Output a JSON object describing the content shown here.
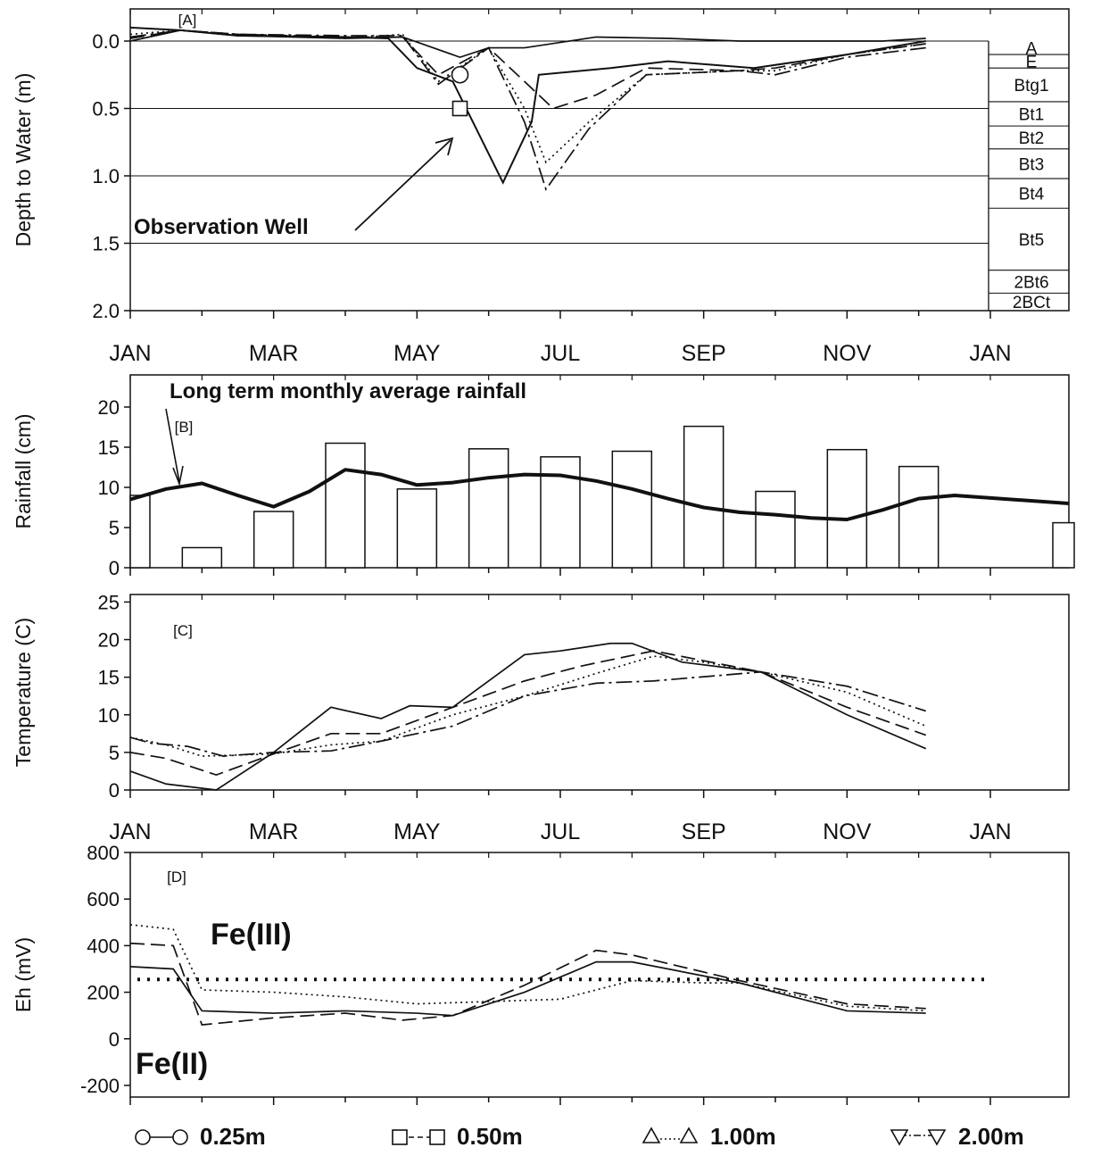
{
  "months": [
    "JAN",
    "MAR",
    "MAY",
    "JUL",
    "SEP",
    "NOV",
    "JAN"
  ],
  "chart_data": [
    {
      "id": "A",
      "type": "line",
      "panel_label": "[A]",
      "ylabel": "Depth to Water (m)",
      "ylim": [
        2.0,
        0.0
      ],
      "y_inverted": true,
      "yticks": [
        "0.0",
        "0.5",
        "1.0",
        "1.5",
        "2.0"
      ],
      "ytick_values": [
        0.0,
        0.5,
        1.0,
        1.5,
        2.0
      ],
      "xlim": [
        0,
        12
      ],
      "grid": "horizontal",
      "annotation": "Observation Well",
      "series": [
        {
          "name": "0.25m",
          "style": "solid",
          "x": [
            0,
            0.7,
            1.5,
            3,
            3.8,
            4.6,
            5.0,
            5.5,
            6.5,
            7.5,
            8.5,
            9.5,
            10.5,
            11.1
          ],
          "y": [
            0.0,
            -0.08,
            -0.04,
            -0.02,
            -0.03,
            0.12,
            0.05,
            0.05,
            -0.03,
            -0.02,
            0.0,
            0.0,
            0.0,
            -0.02
          ]
        },
        {
          "name": "0.50m",
          "style": "dashed",
          "x": [
            0,
            0.7,
            1.5,
            3,
            3.8,
            4.3,
            5.0,
            5.5,
            5.9,
            6.5,
            7.2,
            8.5,
            9.0,
            10.0,
            11.1
          ],
          "y": [
            -0.02,
            -0.08,
            -0.05,
            -0.03,
            -0.03,
            0.25,
            0.05,
            0.3,
            0.5,
            0.4,
            0.2,
            0.22,
            0.2,
            0.1,
            0.02
          ]
        },
        {
          "name": "1.00m",
          "style": "dotted",
          "x": [
            0,
            0.7,
            1.5,
            3,
            3.8,
            4.3,
            5.0,
            5.5,
            5.8,
            6.4,
            7.2,
            8.5,
            9.0,
            10.0,
            11.1
          ],
          "y": [
            -0.05,
            -0.08,
            -0.05,
            -0.02,
            -0.05,
            0.3,
            0.05,
            0.5,
            0.9,
            0.6,
            0.25,
            0.22,
            0.22,
            0.1,
            0.02
          ]
        },
        {
          "name": "2.00m",
          "style": "dashdot",
          "x": [
            0,
            0.7,
            1.5,
            3,
            3.8,
            4.3,
            5.0,
            5.5,
            5.8,
            6.4,
            7.2,
            8.5,
            9.0,
            10.0,
            11.1
          ],
          "y": [
            -0.03,
            -0.08,
            -0.05,
            -0.04,
            -0.04,
            0.32,
            0.05,
            0.6,
            1.1,
            0.65,
            0.25,
            0.22,
            0.25,
            0.12,
            0.05
          ]
        },
        {
          "name": "Observation Well",
          "style": "solid",
          "x": [
            0,
            0.7,
            1.5,
            3,
            3.6,
            4.0,
            4.5,
            5.2,
            5.6,
            5.7,
            6.7,
            7.5,
            8.7,
            10.0,
            11.1
          ],
          "y": [
            -0.1,
            -0.08,
            -0.04,
            -0.03,
            -0.02,
            0.2,
            0.3,
            1.05,
            0.6,
            0.25,
            0.2,
            0.15,
            0.2,
            0.1,
            0.0
          ]
        }
      ],
      "markers": [
        {
          "series": "0.25m",
          "x": 4.6,
          "y": 0.25
        },
        {
          "series": "0.50m",
          "x": 4.6,
          "y": 0.5
        }
      ],
      "horizons": [
        {
          "label": "A",
          "top": 0.0,
          "bottom": 0.1
        },
        {
          "label": "E",
          "top": 0.1,
          "bottom": 0.2
        },
        {
          "label": "Btg1",
          "top": 0.2,
          "bottom": 0.45
        },
        {
          "label": "Bt1",
          "top": 0.45,
          "bottom": 0.63
        },
        {
          "label": "Bt2",
          "top": 0.63,
          "bottom": 0.8
        },
        {
          "label": "Bt3",
          "top": 0.8,
          "bottom": 1.02
        },
        {
          "label": "Bt4",
          "top": 1.02,
          "bottom": 1.24
        },
        {
          "label": "Bt5",
          "top": 1.24,
          "bottom": 1.7
        },
        {
          "label": "2Bt6",
          "top": 1.7,
          "bottom": 1.87
        },
        {
          "label": "2BCt",
          "top": 1.87,
          "bottom": 2.0
        }
      ]
    },
    {
      "id": "B",
      "type": "bar",
      "panel_label": "[B]",
      "ylabel": "Rainfall (cm)",
      "ylim": [
        0,
        24
      ],
      "yticks": [
        "0",
        "5",
        "10",
        "15",
        "20"
      ],
      "ytick_values": [
        0,
        5,
        10,
        15,
        20
      ],
      "xlim": [
        0,
        12
      ],
      "annotation": "Long term monthly average rainfall",
      "bars": {
        "months": [
          0,
          1,
          2,
          3,
          4,
          5,
          6,
          7,
          8,
          9,
          10,
          11,
          12
        ],
        "values": [
          9.0,
          2.5,
          7.0,
          15.5,
          9.8,
          14.8,
          13.8,
          14.5,
          17.6,
          9.5,
          14.7,
          12.6,
          5.6
        ]
      },
      "average_line": {
        "name": "Long term monthly average rainfall",
        "x": [
          0,
          0.5,
          1,
          1.5,
          2,
          2.5,
          3,
          3.5,
          4,
          4.5,
          5,
          5.5,
          6,
          6.5,
          7,
          7.5,
          8,
          8.5,
          9,
          9.5,
          10,
          10.5,
          11,
          11.5,
          12
        ],
        "y": [
          8.5,
          9.8,
          10.5,
          9.0,
          7.6,
          9.5,
          12.2,
          11.6,
          10.3,
          10.6,
          11.2,
          11.6,
          11.5,
          10.8,
          9.8,
          8.6,
          7.5,
          6.9,
          6.6,
          6.2,
          6.0,
          7.2,
          8.6,
          9.0,
          8.0
        ]
      }
    },
    {
      "id": "C",
      "type": "line",
      "panel_label": "[C]",
      "ylabel": "Temperature  (C)",
      "ylim": [
        0,
        26
      ],
      "yticks": [
        "0",
        "5",
        "10",
        "15",
        "20",
        "25"
      ],
      "ytick_values": [
        0,
        5,
        10,
        15,
        20,
        25
      ],
      "xlim": [
        0,
        12
      ],
      "series": [
        {
          "name": "0.25m",
          "style": "solid",
          "x": [
            0,
            0.5,
            1.2,
            2.0,
            2.8,
            3.5,
            3.9,
            4.5,
            5.5,
            6.0,
            6.7,
            7.0,
            7.7,
            8.8,
            10.0,
            11.1
          ],
          "y": [
            2.5,
            0.8,
            0,
            5,
            11,
            9.5,
            11.2,
            11,
            18,
            18.5,
            19.5,
            19.5,
            17,
            15.7,
            10,
            5.5
          ]
        },
        {
          "name": "0.50m",
          "style": "dashed",
          "x": [
            0,
            0.5,
            1.2,
            2.0,
            2.8,
            3.5,
            4.5,
            5.5,
            6.3,
            7.3,
            8.8,
            10.0,
            11.1
          ],
          "y": [
            5,
            4.2,
            2,
            4.8,
            7.5,
            7.5,
            11,
            14.5,
            16.5,
            18.5,
            15.7,
            11,
            7.3
          ]
        },
        {
          "name": "1.00m",
          "style": "dotted",
          "x": [
            0,
            0.5,
            1.0,
            2.0,
            2.8,
            3.5,
            4.5,
            5.5,
            6.5,
            7.3,
            8.0,
            8.8,
            10.0,
            11.1
          ],
          "y": [
            7,
            6,
            4.5,
            4.8,
            6,
            6.5,
            10,
            12.5,
            15.5,
            17.8,
            17,
            15.7,
            13,
            8.5
          ]
        },
        {
          "name": "2.00m",
          "style": "dashdot",
          "x": [
            0,
            0.3,
            0.8,
            1.3,
            2.0,
            2.8,
            3.5,
            4.5,
            5.5,
            6.5,
            7.3,
            8.8,
            10.0,
            11.1
          ],
          "y": [
            7,
            6.2,
            5.8,
            4.5,
            5,
            5.2,
            6.5,
            8.5,
            12.5,
            14.2,
            14.5,
            15.7,
            13.8,
            10.5
          ]
        }
      ]
    },
    {
      "id": "D",
      "type": "line",
      "panel_label": "[D]",
      "ylabel": "Eh  (mV)",
      "ylim": [
        -250,
        800
      ],
      "yticks": [
        "-200",
        "0",
        "200",
        "400",
        "600",
        "800"
      ],
      "ytick_values": [
        -200,
        0,
        200,
        400,
        600,
        800
      ],
      "xlim": [
        0,
        12
      ],
      "threshold": {
        "y": 255,
        "style": "dotted-bold",
        "label_above": "Fe(III)",
        "label_below": "Fe(II)"
      },
      "series": [
        {
          "name": "0.25m",
          "style": "solid",
          "x": [
            0,
            0.6,
            1.0,
            2.0,
            3.0,
            4.0,
            4.5,
            5.5,
            6.5,
            7.0,
            8.5,
            10.0,
            11.1
          ],
          "y": [
            310,
            300,
            120,
            110,
            120,
            110,
            100,
            200,
            330,
            330,
            240,
            120,
            110
          ]
        },
        {
          "name": "0.50m",
          "style": "dashed",
          "x": [
            0,
            0.6,
            1.0,
            2.0,
            3.0,
            3.8,
            4.5,
            5.5,
            6.5,
            7.0,
            8.5,
            10.0,
            11.1
          ],
          "y": [
            410,
            400,
            60,
            90,
            110,
            80,
            100,
            230,
            380,
            360,
            250,
            150,
            130
          ]
        },
        {
          "name": "1.00m",
          "style": "dotted",
          "x": [
            0,
            0.6,
            1.0,
            2.0,
            3.0,
            4.0,
            5.0,
            6.0,
            7.0,
            8.0,
            8.5,
            10.0,
            11.1
          ],
          "y": [
            490,
            470,
            210,
            200,
            180,
            150,
            160,
            170,
            250,
            240,
            240,
            140,
            120
          ]
        }
      ]
    }
  ],
  "legend": [
    {
      "label": "0.25m",
      "marker": "circle",
      "style": "solid"
    },
    {
      "label": "0.50m",
      "marker": "square",
      "style": "dashed"
    },
    {
      "label": "1.00m",
      "marker": "triangle-up",
      "style": "dotted"
    },
    {
      "label": "2.00m",
      "marker": "triangle-down",
      "style": "dashdot"
    }
  ]
}
